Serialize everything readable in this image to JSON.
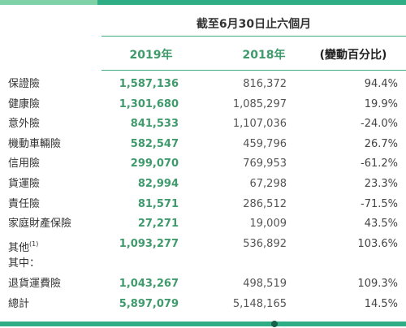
{
  "table": {
    "title": "截至6月30日止六個月",
    "columns": [
      "2019年",
      "2018年",
      "(變動百分比)"
    ],
    "rows": [
      {
        "label": "保證險",
        "values": [
          "1,587,136",
          "816,372",
          "94.4%"
        ]
      },
      {
        "label": "健康險",
        "values": [
          "1,301,680",
          "1,085,297",
          "19.9%"
        ]
      },
      {
        "label": "意外險",
        "values": [
          "841,533",
          "1,107,036",
          "-24.0%"
        ]
      },
      {
        "label": "機動車輛險",
        "values": [
          "582,547",
          "459,796",
          "26.7%"
        ]
      },
      {
        "label": "信用險",
        "values": [
          "299,070",
          "769,953",
          "-61.2%"
        ]
      },
      {
        "label": "貨運險",
        "values": [
          "82,994",
          "67,298",
          "23.3%"
        ]
      },
      {
        "label": "責任險",
        "values": [
          "81,571",
          "286,512",
          "-71.5%"
        ]
      },
      {
        "label": "家庭財產保險",
        "values": [
          "27,271",
          "19,009",
          "43.5%"
        ]
      },
      {
        "label": "其他",
        "note": "(1)",
        "values": [
          "1,093,277",
          "536,892",
          "103.6%"
        ]
      },
      {
        "label": "其中："
      },
      {
        "label": "退貨運費險",
        "values": [
          "1,043,267",
          "498,519",
          "109.3%"
        ]
      },
      {
        "label": "總計",
        "values": [
          "5,897,079",
          "5,148,165",
          "14.5%"
        ]
      }
    ]
  }
}
